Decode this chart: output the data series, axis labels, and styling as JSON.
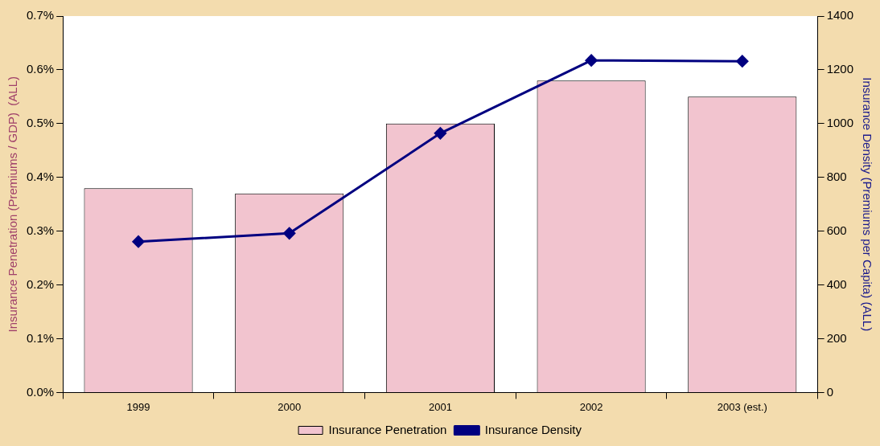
{
  "chart_data": {
    "type": "bar",
    "categories": [
      "1999",
      "2000",
      "2001",
      "2002",
      "2003 (est.)"
    ],
    "ylabel": "Insurance Penetration (Premiums / GDP)  (ALL)",
    "y2label": "Insurance Density (Premiums per Capita) (ALL)",
    "series": [
      {
        "name": "Insurance Penetration",
        "color": "#f2c4cf",
        "values": [
          0.38,
          0.37,
          0.5,
          0.58,
          0.55
        ]
      },
      {
        "name": "Insurance Density",
        "type": "line",
        "axis": "y2",
        "color": "#000080",
        "marker": "diamond",
        "values": [
          561,
          592,
          964,
          1235,
          1232
        ]
      }
    ],
    "ylim": [
      0,
      0.7
    ],
    "yticks": [
      {
        "value": 0,
        "label": "0.0%"
      },
      {
        "value": 0.1,
        "label": "0.1%"
      },
      {
        "value": 0.2,
        "label": "0.2%"
      },
      {
        "value": 0.3,
        "label": "0.3%"
      },
      {
        "value": 0.4,
        "label": "0.4%"
      },
      {
        "value": 0.5,
        "label": "0.5%"
      },
      {
        "value": 0.6,
        "label": "0.6%"
      },
      {
        "value": 0.7,
        "label": "0.7%"
      }
    ],
    "y2lim": [
      0,
      1400
    ],
    "y2ticks": [
      0,
      200,
      400,
      600,
      800,
      1000,
      1200,
      1400
    ],
    "grid": false,
    "legend": "bottom"
  }
}
